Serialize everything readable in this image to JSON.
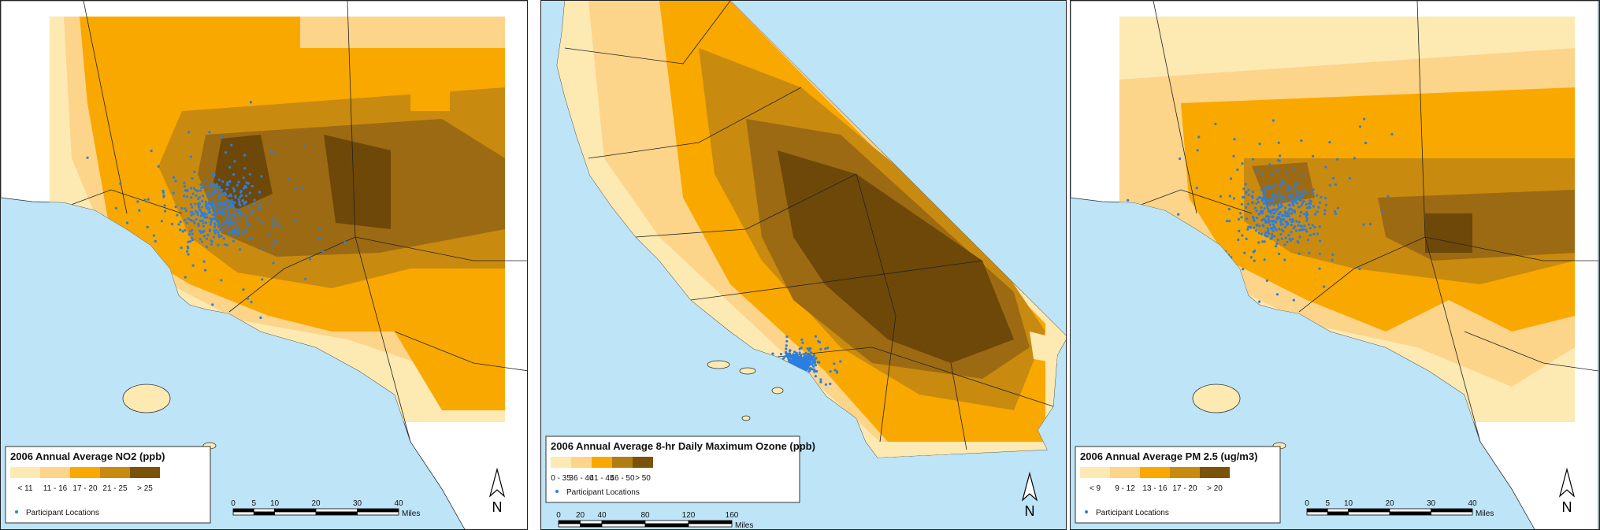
{
  "panels": [
    {
      "legend": {
        "title": "2006 Annual Average NO2 (ppb)",
        "classes": [
          {
            "label": "< 11",
            "color": "#fde9b2"
          },
          {
            "label": "11 - 16",
            "color": "#fcd48a"
          },
          {
            "label": "17 - 20",
            "color": "#f9a800"
          },
          {
            "label": "21 - 25",
            "color": "#c98a10"
          },
          {
            "label": "> 25",
            "color": "#7a5208"
          }
        ],
        "participants": "Participant Locations"
      },
      "scale": {
        "ticks": [
          0,
          5,
          10,
          20,
          30,
          40
        ],
        "unit": "Miles"
      },
      "north": "N"
    },
    {
      "legend": {
        "title": "2006 Annual Average 8-hr Daily Maximum Ozone (ppb)",
        "classes": [
          {
            "label": "0 - 35",
            "color": "#fde9b2"
          },
          {
            "label": "36 - 40",
            "color": "#fcd48a"
          },
          {
            "label": "41 - 45",
            "color": "#f9a800"
          },
          {
            "label": "46 - 50",
            "color": "#b07e10"
          },
          {
            "label": "> 50",
            "color": "#7a5208"
          }
        ],
        "participants": "Participant Locations"
      },
      "scale": {
        "ticks": [
          0,
          20,
          40,
          80,
          120,
          160
        ],
        "unit": "Miles"
      },
      "north": "N"
    },
    {
      "legend": {
        "title": "2006 Annual Average PM 2.5 (ug/m3)",
        "classes": [
          {
            "label": "< 9",
            "color": "#fde9b2"
          },
          {
            "label": "9 - 12",
            "color": "#fcd48a"
          },
          {
            "label": "13 - 16",
            "color": "#f9a800"
          },
          {
            "label": "17 - 20",
            "color": "#c98a10"
          },
          {
            "label": "> 20",
            "color": "#7a5208"
          }
        ],
        "participants": "Participant Locations"
      },
      "scale": {
        "ticks": [
          0,
          5,
          10,
          20,
          30,
          40
        ],
        "unit": "Miles"
      },
      "north": "N"
    }
  ]
}
